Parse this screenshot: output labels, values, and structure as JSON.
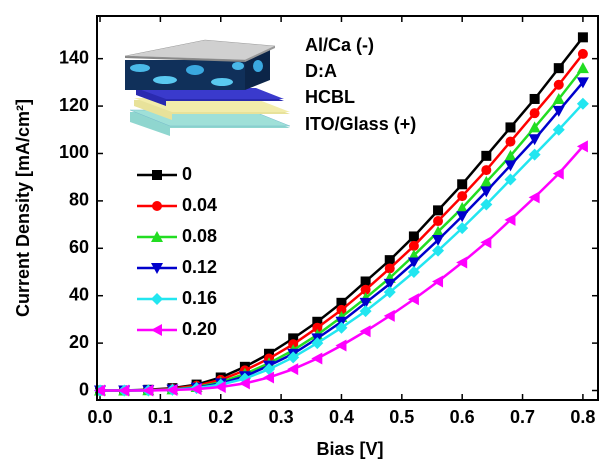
{
  "chart_data": {
    "type": "line",
    "xlabel": "Bias [V]",
    "ylabel": "Current Density [mA/cm²]",
    "annotations": [
      "Al/Ca (-)",
      "D:A",
      "HCBL",
      "ITO/Glass (+)"
    ],
    "x": [
      0,
      0.04,
      0.08,
      0.12,
      0.16,
      0.2,
      0.24,
      0.28,
      0.32,
      0.36,
      0.4,
      0.44,
      0.48,
      0.52,
      0.56,
      0.6,
      0.64,
      0.68,
      0.72,
      0.76,
      0.8
    ],
    "xlim": [
      -0.005,
      0.825
    ],
    "xticks": [
      {
        "value": 0,
        "label": "0.0"
      },
      0.1,
      0.2,
      0.3,
      0.4,
      0.5,
      0.6,
      0.7,
      0.8
    ],
    "ylim": [
      -4,
      158
    ],
    "yticks": [
      0,
      20,
      40,
      60,
      80,
      100,
      120,
      140
    ],
    "series": [
      {
        "name": "0",
        "color": "#000000",
        "marker": "square",
        "values": [
          0,
          0,
          0.3,
          1,
          2.5,
          5.5,
          10,
          15.5,
          22,
          29,
          37,
          46,
          55,
          65,
          76,
          87,
          99,
          111,
          123,
          136,
          149
        ]
      },
      {
        "name": "0.04",
        "color": "#ff0000",
        "marker": "circle",
        "values": [
          0,
          0,
          0.2,
          0.8,
          2,
          4.5,
          8.5,
          13.5,
          19.5,
          26.5,
          34,
          42.5,
          51.5,
          61,
          71.5,
          82,
          93,
          105,
          117,
          129,
          142
        ]
      },
      {
        "name": "0.08",
        "color": "#22dd22",
        "marker": "triangle-up",
        "values": [
          0,
          0,
          0.1,
          0.5,
          1.5,
          3.5,
          7,
          11.5,
          17,
          23.5,
          31,
          39,
          47.5,
          57,
          67,
          77,
          88,
          99,
          111,
          123,
          136
        ]
      },
      {
        "name": "0.12",
        "color": "#0000cc",
        "marker": "triangle-down",
        "values": [
          0,
          0,
          0.1,
          0.4,
          1.2,
          3,
          6,
          10.5,
          15.5,
          22,
          29,
          37,
          45,
          54,
          63.5,
          73.5,
          84,
          95,
          106,
          118,
          130
        ]
      },
      {
        "name": "0.16",
        "color": "#22e6f0",
        "marker": "diamond",
        "values": [
          0,
          0,
          0,
          0.3,
          1,
          2.5,
          5,
          9,
          14,
          20,
          26.5,
          33.5,
          41.5,
          50,
          59,
          68.5,
          78.5,
          89,
          99.5,
          110,
          121
        ]
      },
      {
        "name": "0.20",
        "color": "#ff00ff",
        "marker": "triangle-left",
        "values": [
          0,
          0,
          0,
          0.2,
          0.6,
          1.5,
          3,
          5.5,
          9,
          13.5,
          19,
          25,
          31.5,
          38.5,
          46,
          54,
          62.5,
          72,
          81.5,
          91.5,
          103
        ]
      }
    ]
  }
}
